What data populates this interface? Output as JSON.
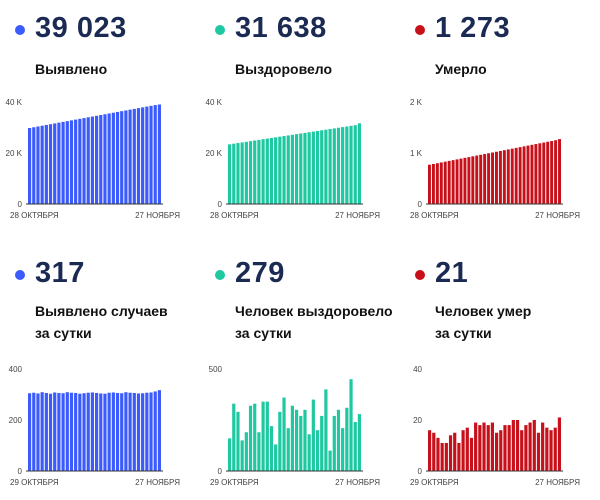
{
  "panels": [
    {
      "value": "39 023",
      "label_lines": [
        "Выявлено"
      ],
      "color": "#3b5bfd",
      "chart_data": {
        "type": "bar",
        "ylim": [
          0,
          40000
        ],
        "yticks": [
          {
            "v": 0,
            "label": "0"
          },
          {
            "v": 20000,
            "label": "20 K"
          },
          {
            "v": 40000,
            "label": "40 K"
          }
        ],
        "xlabels": [
          "28 ОКТЯБРЯ",
          "27 НОЯБРЯ"
        ],
        "values": [
          29800,
          30100,
          30400,
          30700,
          31000,
          31300,
          31600,
          31900,
          32200,
          32500,
          32800,
          33100,
          33400,
          33700,
          34000,
          34300,
          34600,
          34900,
          35200,
          35500,
          35800,
          36100,
          36400,
          36700,
          37000,
          37300,
          37600,
          37900,
          38200,
          38500,
          38800,
          39023
        ]
      }
    },
    {
      "value": "31 638",
      "label_lines": [
        "Выздоровело"
      ],
      "color": "#1ec8a0",
      "chart_data": {
        "type": "bar",
        "ylim": [
          0,
          40000
        ],
        "yticks": [
          {
            "v": 0,
            "label": "0"
          },
          {
            "v": 20000,
            "label": "20 K"
          },
          {
            "v": 40000,
            "label": "40 K"
          }
        ],
        "xlabels": [
          "28 ОКТЯБРЯ",
          "27 НОЯБРЯ"
        ],
        "values": [
          23400,
          23650,
          23900,
          24150,
          24400,
          24650,
          24900,
          25150,
          25400,
          25650,
          25900,
          26150,
          26400,
          26650,
          26900,
          27150,
          27400,
          27650,
          27900,
          28150,
          28400,
          28650,
          28900,
          29150,
          29400,
          29650,
          29900,
          30150,
          30400,
          30650,
          30900,
          31638
        ]
      }
    },
    {
      "value": "1 273",
      "label_lines": [
        "Умерло"
      ],
      "color": "#c8101a",
      "chart_data": {
        "type": "bar",
        "ylim": [
          0,
          2000
        ],
        "yticks": [
          {
            "v": 0,
            "label": "0"
          },
          {
            "v": 1000,
            "label": "1 K"
          },
          {
            "v": 2000,
            "label": "2 K"
          }
        ],
        "xlabels": [
          "28 ОКТЯБРЯ",
          "27 НОЯБРЯ"
        ],
        "values": [
          770,
          785,
          800,
          815,
          830,
          845,
          860,
          875,
          890,
          905,
          920,
          935,
          950,
          965,
          980,
          995,
          1010,
          1025,
          1040,
          1055,
          1070,
          1085,
          1100,
          1115,
          1130,
          1145,
          1160,
          1175,
          1190,
          1205,
          1220,
          1235,
          1250,
          1273
        ]
      }
    },
    {
      "value": "317",
      "label_lines": [
        "Выявлено случаев",
        "за сутки"
      ],
      "color": "#3b5bfd",
      "chart_data": {
        "type": "bar",
        "ylim": [
          0,
          400
        ],
        "yticks": [
          {
            "v": 0,
            "label": "0"
          },
          {
            "v": 200,
            "label": "200"
          },
          {
            "v": 400,
            "label": "400"
          }
        ],
        "xlabels": [
          "29 ОКТЯБРЯ",
          "27 НОЯБРЯ"
        ],
        "values": [
          305,
          307,
          304,
          309,
          306,
          303,
          308,
          306,
          305,
          309,
          307,
          306,
          303,
          305,
          307,
          308,
          306,
          304,
          303,
          307,
          308,
          306,
          305,
          309,
          307,
          306,
          304,
          305,
          307,
          308,
          312,
          317
        ]
      }
    },
    {
      "value": "279",
      "label_lines": [
        "Человек выздоровело",
        "за сутки"
      ],
      "color": "#1ec8a0",
      "chart_data": {
        "type": "bar",
        "ylim": [
          0,
          500
        ],
        "yticks": [
          {
            "v": 0,
            "label": "0"
          },
          {
            "v": 500,
            "label": "500"
          }
        ],
        "xlabels": [
          "29 ОКТЯБРЯ",
          "27 НОЯБРЯ"
        ],
        "values": [
          160,
          330,
          290,
          150,
          190,
          320,
          330,
          190,
          340,
          340,
          220,
          130,
          290,
          360,
          210,
          320,
          300,
          270,
          300,
          180,
          350,
          200,
          270,
          400,
          100,
          270,
          300,
          210,
          310,
          450,
          240,
          279
        ]
      }
    },
    {
      "value": "21",
      "label_lines": [
        "Человек умер",
        "за сутки"
      ],
      "color": "#c8101a",
      "chart_data": {
        "type": "bar",
        "ylim": [
          0,
          40
        ],
        "yticks": [
          {
            "v": 0,
            "label": "0"
          },
          {
            "v": 20,
            "label": "20"
          },
          {
            "v": 40,
            "label": "40"
          }
        ],
        "xlabels": [
          "29 ОКТЯБРЯ",
          "27 НОЯБРЯ"
        ],
        "values": [
          16,
          15,
          13,
          11,
          11,
          14,
          15,
          11,
          16,
          17,
          13,
          19,
          18,
          19,
          18,
          19,
          15,
          16,
          18,
          18,
          20,
          20,
          16,
          18,
          19,
          20,
          15,
          19,
          17,
          16,
          17,
          21
        ]
      }
    }
  ]
}
